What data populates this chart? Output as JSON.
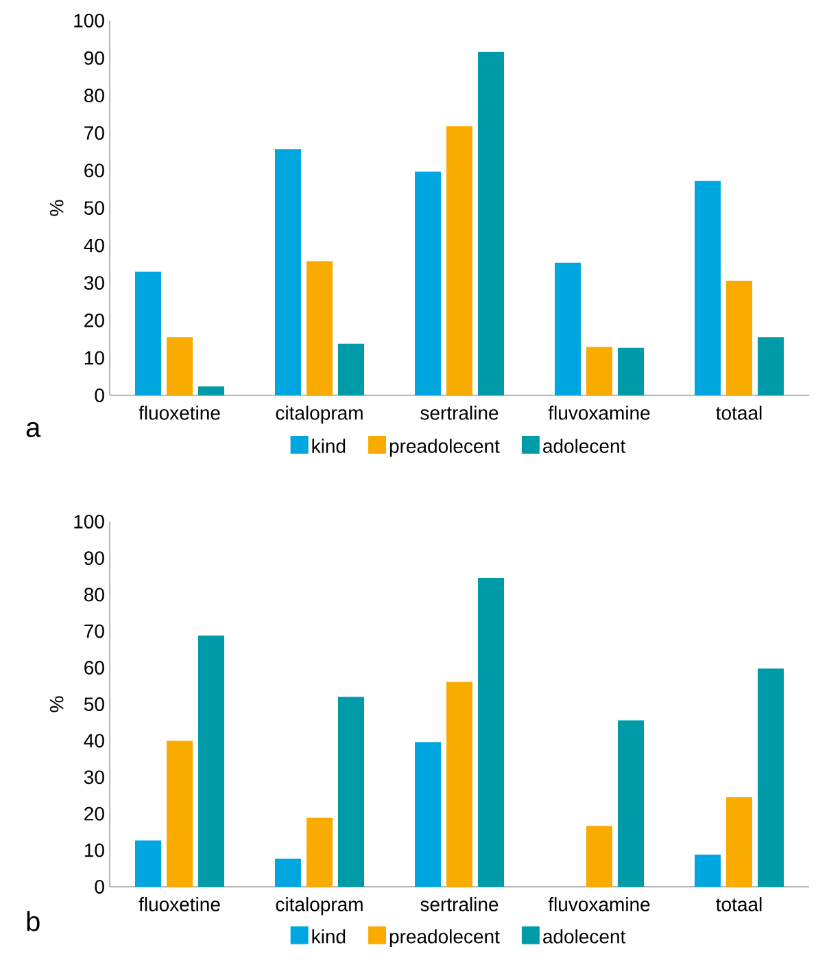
{
  "chart_data": [
    {
      "type": "bar",
      "ylabel": "%",
      "categories": [
        "fluoxetine",
        "citalopram",
        "sertraline",
        "fluvoxamine",
        "totaal"
      ],
      "ylim": [
        0,
        100
      ],
      "yticks": [
        0,
        10,
        20,
        30,
        40,
        50,
        60,
        70,
        80,
        90,
        100
      ],
      "legend": "bottom",
      "annotations": [
        "a"
      ],
      "series": [
        {
          "name": "kind",
          "color": "#00a6e0",
          "values": [
            33,
            65.7,
            59.7,
            35.4,
            57.2
          ]
        },
        {
          "name": "preadolecent",
          "color": "#f9ab00",
          "values": [
            15.5,
            35.8,
            71.8,
            12.9,
            30.6
          ]
        },
        {
          "name": "adolecent",
          "color": "#009ba8",
          "values": [
            2.4,
            13.8,
            91.6,
            12.7,
            15.5
          ]
        }
      ]
    },
    {
      "type": "bar",
      "ylabel": "%",
      "categories": [
        "fluoxetine",
        "citalopram",
        "sertraline",
        "fluvoxamine",
        "totaal"
      ],
      "ylim": [
        0,
        100
      ],
      "yticks": [
        0,
        10,
        20,
        30,
        40,
        50,
        60,
        70,
        80,
        90,
        100
      ],
      "legend": "bottom",
      "annotations": [
        "b"
      ],
      "series": [
        {
          "name": "kind",
          "color": "#00a6e0",
          "values": [
            12.7,
            7.7,
            39.6,
            0,
            8.8
          ]
        },
        {
          "name": "preadolecent",
          "color": "#f9ab00",
          "values": [
            40,
            18.9,
            56.1,
            16.7,
            24.6
          ]
        },
        {
          "name": "adolecent",
          "color": "#009ba8",
          "values": [
            68.8,
            52,
            84.6,
            45.6,
            59.8
          ]
        }
      ]
    }
  ]
}
